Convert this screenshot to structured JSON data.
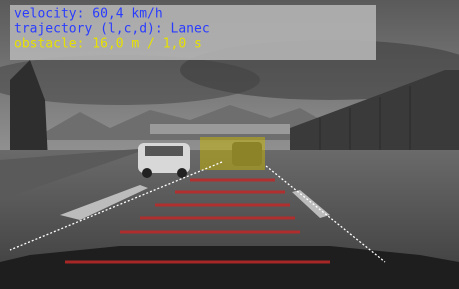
{
  "overlay": {
    "lines": [
      "velocity: 60,4 km/h",
      "trajectory (l,c,d): Lanec",
      "obstacle: 16,0 m / 1,0 s"
    ]
  }
}
